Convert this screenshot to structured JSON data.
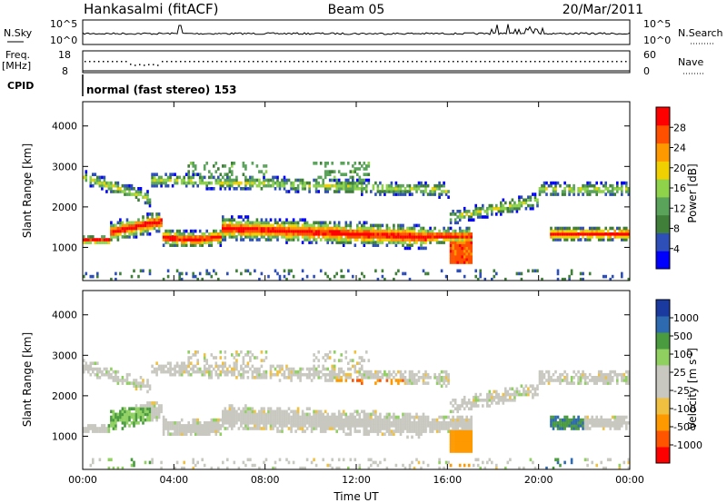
{
  "header": {
    "station": "Hankasalmi (fitACF)",
    "beam": "Beam 05",
    "date": "20/Mar/2011"
  },
  "noise_panel": {
    "left_label": "N.Sky",
    "left_ticks": [
      "10^5",
      "10^0"
    ],
    "right_label": "N.Search",
    "right_ticks": [
      "10^5",
      "10^0"
    ]
  },
  "freq_panel": {
    "left_label_line1": "Freq.",
    "left_label_line2": "[MHz]",
    "left_ticks": [
      "18",
      "8"
    ],
    "right_label": "Nave",
    "right_ticks": [
      "60",
      "0"
    ]
  },
  "cpid": {
    "label": "CPID",
    "mode": "normal (fast stereo) 153"
  },
  "colors": {
    "power": [
      "#0000ff",
      "#2e4fb8",
      "#3f7f3a",
      "#59a35a",
      "#8fd34a",
      "#f0d000",
      "#ff9900",
      "#ff5000",
      "#ff0000"
    ],
    "velocity": [
      "#ff0000",
      "#ff5500",
      "#ff9900",
      "#f0c040",
      "#c8c8c0",
      "#c8c8c0",
      "#90d060",
      "#4a9a40",
      "#2e6ab0",
      "#1a3aa0"
    ]
  },
  "chart_data": [
    {
      "type": "heatmap",
      "name": "power",
      "xlabel": "",
      "ylabel": "Slant Range [km]",
      "yticks": [
        1000,
        2000,
        3000,
        4000
      ],
      "ylim": [
        180,
        4600
      ],
      "xlim_hours": [
        0,
        24
      ],
      "colorbar": {
        "label": "Power [dB]",
        "ticks": [
          "4",
          "8",
          "12",
          "16",
          "20",
          "24",
          "28"
        ],
        "range": [
          0,
          32
        ]
      }
    },
    {
      "type": "heatmap",
      "name": "velocity",
      "xlabel": "Time UT",
      "ylabel": "Slant Range [km]",
      "yticks": [
        1000,
        2000,
        3000,
        4000
      ],
      "ylim": [
        180,
        4600
      ],
      "xticks": [
        "00:00",
        "04:00",
        "08:00",
        "12:00",
        "16:00",
        "20:00",
        "00:00"
      ],
      "xlim_hours": [
        0,
        24
      ],
      "colorbar": {
        "label": "Velocity [m s^-1]",
        "ticks": [
          "1000",
          "500",
          "100",
          "25",
          "-25",
          "-100",
          "-500",
          "-1000"
        ]
      }
    }
  ]
}
